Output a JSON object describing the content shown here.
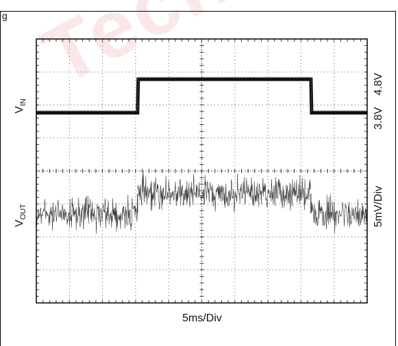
{
  "figure_label": "g",
  "watermark": "Technic",
  "colors": {
    "trace": "#111111",
    "grid": "#555555",
    "watermark": "#c80000"
  },
  "chart_data": {
    "type": "line",
    "title": "",
    "xlabel": "5ms/Div",
    "x_divisions": 10,
    "y_divisions": 8,
    "xlim_ms": [
      0,
      50
    ],
    "grid": true,
    "series": [
      {
        "name": "VIN",
        "label_main": "V",
        "label_sub": "IN",
        "scale_labels": [
          "4.8V",
          "3.8V"
        ],
        "x": [
          0,
          15.3,
          15.4,
          41.5,
          41.6,
          50
        ],
        "y": [
          3.8,
          3.8,
          4.8,
          4.8,
          3.8,
          3.8
        ],
        "units": "V"
      },
      {
        "name": "VOUT",
        "label_main": "V",
        "label_sub": "OUT",
        "scale_label": "5mV/Div",
        "segments": [
          {
            "x_start": 0,
            "x_end": 15.3,
            "mean_mV": 0,
            "noise_pp_mV": 7
          },
          {
            "x_start": 15.3,
            "x_end": 41.5,
            "mean_mV": 3,
            "noise_pp_mV": 7
          },
          {
            "x_start": 41.5,
            "x_end": 50,
            "mean_mV": 0,
            "noise_pp_mV": 7
          }
        ],
        "units": "mV"
      }
    ]
  }
}
